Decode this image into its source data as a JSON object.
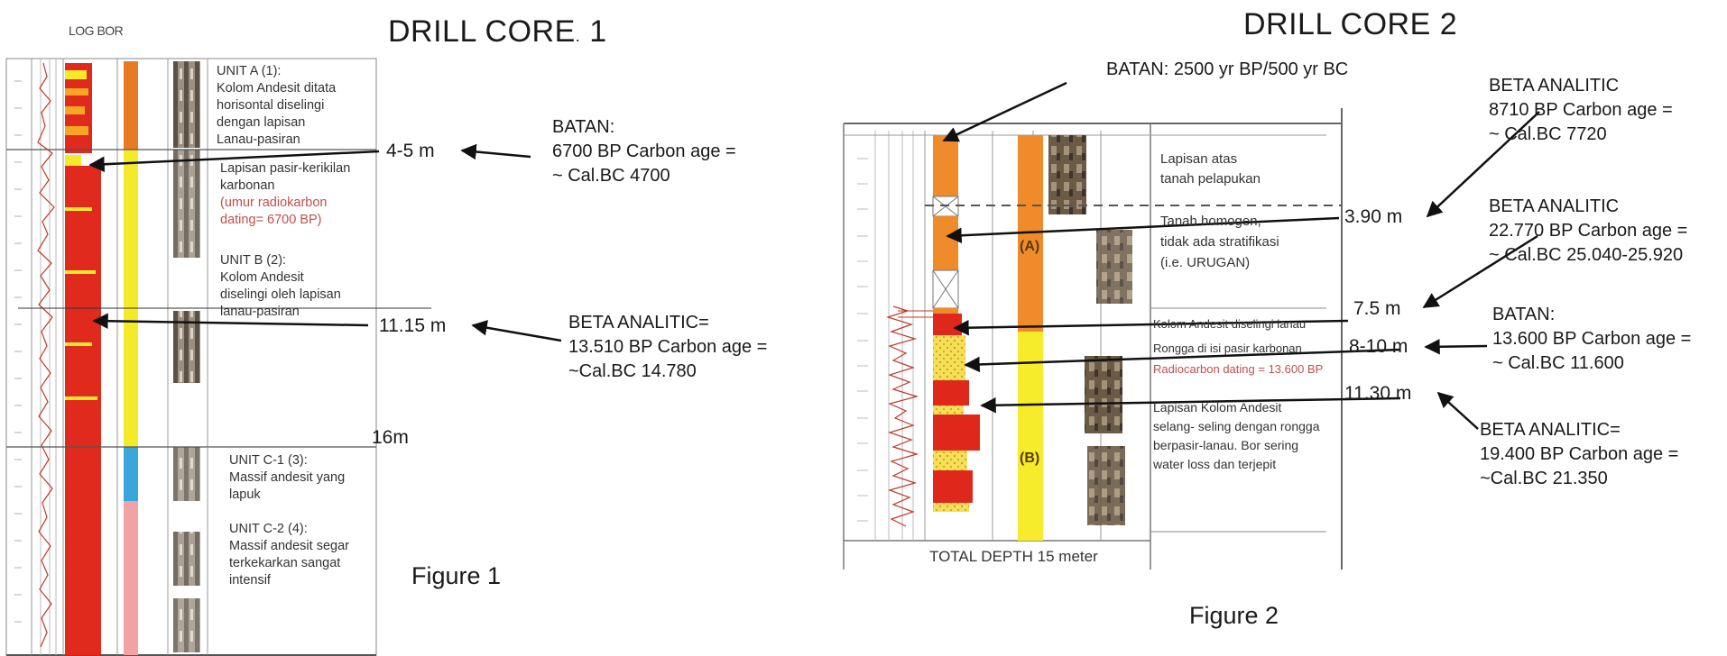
{
  "core1": {
    "log_title": "LOG BOR",
    "title": "DRILL CORE",
    "title_mark": ".",
    "title_num": "1",
    "units": [
      {
        "text": "UNIT A (1):\nKolom Andesit ditata\nhorisontal diselingi\ndengan  lapisan\nLanau-pasiran"
      },
      {
        "text": "Lapisan pasir-kerikilan\nkarbonan"
      },
      {
        "text": "(umur radiokarbon\ndating= 6700 BP)"
      },
      {
        "text": "UNIT B (2):\nKolom Andesit\ndiselingi oleh lapisan\nlanau-pasiran"
      },
      {
        "text": "UNIT C-1 (3):\nMassif andesit yang\nlapuk"
      },
      {
        "text": "UNIT C-2 (4):\nMassif andesit segar\nterkekarkan sangat\nintensif"
      }
    ],
    "depths": [
      "4-5 m",
      "11.15 m",
      "16m"
    ],
    "annotations": [
      {
        "text": "BATAN:\n6700 BP Carbon age =\n~  Cal.BC 4700"
      },
      {
        "text": "BETA ANALITIC=\n13.510  BP Carbon age =\n~Cal.BC 14.780"
      }
    ],
    "figure_label": "Figure 1",
    "colors": {
      "orange": "#e97a24",
      "yellow": "#f5ea2a",
      "red": "#e02a1e",
      "blue": "#3aa6dc",
      "pink": "#f1a3a3",
      "trace": "#c0392b"
    }
  },
  "core2": {
    "title": "DRILL CORE 2",
    "top_label": "BATAN: 2500 yr BP/500 yr BC",
    "layers": [
      {
        "text": "Lapisan atas\ntanah pelapukan"
      },
      {
        "text": "Tanah homogen,\ntidak ada stratifikasi\n(i.e. URUGAN)"
      },
      {
        "text": "Kolom Andesit diselingi lanau"
      },
      {
        "text": "Rongga di isi pasir karbonan"
      },
      {
        "text": "Radiocarbon dating = 13.600 BP"
      },
      {
        "text": "Lapisan Kolom Andesit\nselang- seling dengan rongga\nberpasir-lanau.  Bor sering\nwater loss dan terjepit"
      }
    ],
    "unit_a": "(A)",
    "unit_b": "(B)",
    "depths": [
      "3.90 m",
      "7.5 m",
      "8-10 m",
      "11.30 m"
    ],
    "annotations": [
      {
        "text": "BETA ANALITIC\n8710 BP Carbon age =\n~  Cal.BC 7720"
      },
      {
        "text": "BETA ANALITIC\n22.770 BP Carbon age =\n~  Cal.BC 25.040-25.920"
      },
      {
        "text": "BATAN:\n13.600 BP Carbon age =\n~  Cal.BC 11.600"
      },
      {
        "text": "BETA ANALITIC=\n19.400  BP Carbon age =\n~Cal.BC 21.350"
      }
    ],
    "total_depth": "TOTAL DEPTH 15 meter",
    "figure_label": "Figure 2",
    "colors": {
      "orange": "#ef8b2a",
      "yellow": "#f6ec2c",
      "red": "#e0271c",
      "sand": "#f4df57"
    }
  }
}
